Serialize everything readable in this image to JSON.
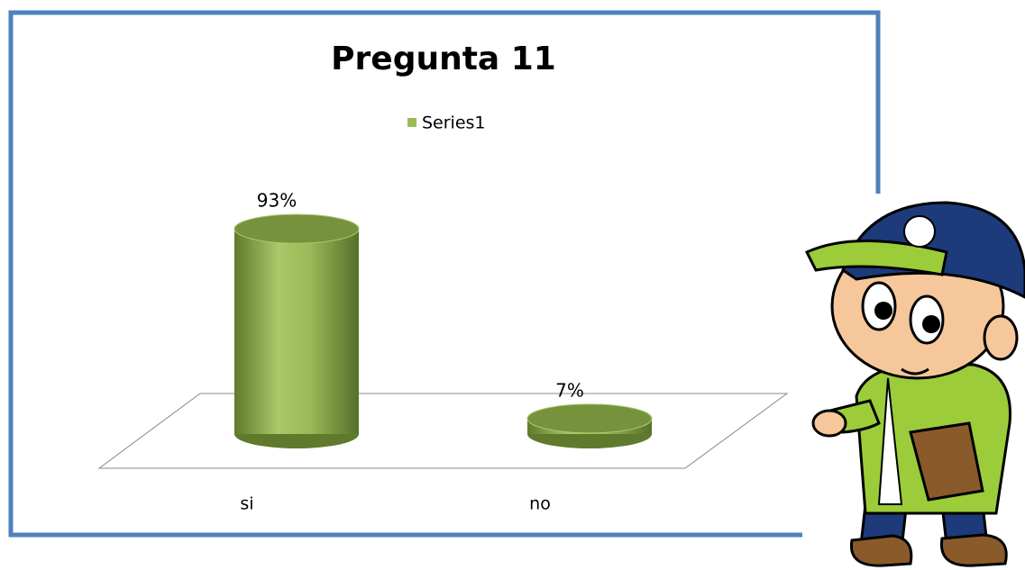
{
  "chart_data": {
    "type": "bar3d",
    "title": "Pregunta 11",
    "categories": [
      "si",
      "no"
    ],
    "series": [
      {
        "name": "Series1",
        "color": "#9bbb59",
        "values": [
          93,
          7
        ],
        "value_labels": [
          "93%",
          "7%"
        ]
      }
    ]
  }
}
